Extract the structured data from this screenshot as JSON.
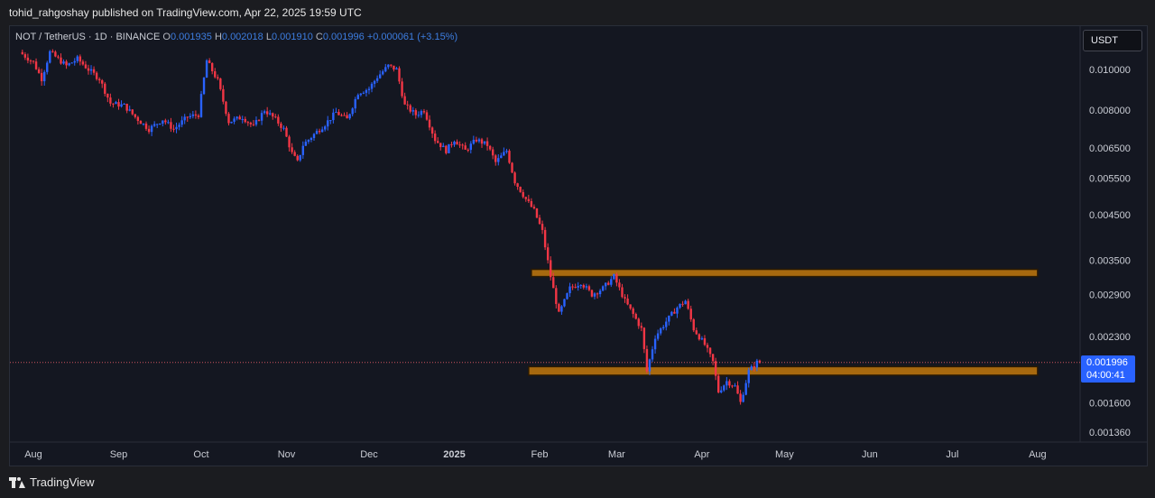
{
  "header": {
    "published": "tohid_rahgoshay published on TradingView.com, Apr 22, 2025 19:59 UTC"
  },
  "legend": {
    "symbol": "NOT / TetherUS · 1D · BINANCE",
    "o_label": "O",
    "o_value": "0.001935",
    "h_label": "H",
    "h_value": "0.002018",
    "l_label": "L",
    "l_value": "0.001910",
    "c_label": "C",
    "c_value": "0.001996",
    "change": "+0.000061 (+3.15%)"
  },
  "currency_button": {
    "label": "USDT"
  },
  "price_tag": {
    "price": "0.001996",
    "countdown": "04:00:41"
  },
  "footer": {
    "brand": "TradingView"
  },
  "colors": {
    "up": "#2962ff",
    "down": "#f23645",
    "zone": "#a7690f",
    "background": "#141721"
  },
  "chart_data": {
    "type": "candlestick",
    "scale": "log",
    "y_tick_labels": [
      "0.010000",
      "0.008000",
      "0.006500",
      "0.005500",
      "0.004500",
      "0.003500",
      "0.002900",
      "0.002300",
      "0.001600",
      "0.001360"
    ],
    "y_ticks": [
      0.01,
      0.008,
      0.0065,
      0.0055,
      0.0045,
      0.0035,
      0.0029,
      0.0023,
      0.0016,
      0.00136
    ],
    "x_tick_labels": [
      "Aug",
      "Sep",
      "Oct",
      "Nov",
      "Dec",
      "2025",
      "Feb",
      "Mar",
      "Apr",
      "May",
      "Jun",
      "Jul",
      "Aug"
    ],
    "last_price": 0.001996,
    "zones": [
      {
        "from": "2025-01-29",
        "to": "2025-08-01",
        "low": 0.0032,
        "high": 0.00333
      },
      {
        "from": "2025-01-28",
        "to": "2025-08-01",
        "low": 0.00186,
        "high": 0.00195
      }
    ],
    "price_path": [
      [
        "2024-07-28",
        0.011
      ],
      [
        "2024-08-02",
        0.0104
      ],
      [
        "2024-08-05",
        0.0095
      ],
      [
        "2024-08-08",
        0.011
      ],
      [
        "2024-08-14",
        0.0102
      ],
      [
        "2024-08-18",
        0.0106
      ],
      [
        "2024-08-22",
        0.01
      ],
      [
        "2024-08-26",
        0.0095
      ],
      [
        "2024-08-30",
        0.0083
      ],
      [
        "2024-09-04",
        0.0082
      ],
      [
        "2024-09-08",
        0.0077
      ],
      [
        "2024-09-13",
        0.0072
      ],
      [
        "2024-09-18",
        0.0076
      ],
      [
        "2024-09-22",
        0.0072
      ],
      [
        "2024-09-27",
        0.0077
      ],
      [
        "2024-10-01",
        0.0078
      ],
      [
        "2024-10-04",
        0.0105
      ],
      [
        "2024-10-08",
        0.0094
      ],
      [
        "2024-10-12",
        0.0075
      ],
      [
        "2024-10-17",
        0.0077
      ],
      [
        "2024-10-21",
        0.0073
      ],
      [
        "2024-10-25",
        0.008
      ],
      [
        "2024-10-29",
        0.0076
      ],
      [
        "2024-11-01",
        0.0072
      ],
      [
        "2024-11-04",
        0.0063
      ],
      [
        "2024-11-06",
        0.006
      ],
      [
        "2024-11-08",
        0.0066
      ],
      [
        "2024-11-12",
        0.007
      ],
      [
        "2024-11-16",
        0.0074
      ],
      [
        "2024-11-20",
        0.0079
      ],
      [
        "2024-11-24",
        0.0076
      ],
      [
        "2024-11-28",
        0.0088
      ],
      [
        "2024-12-02",
        0.009
      ],
      [
        "2024-12-05",
        0.0096
      ],
      [
        "2024-12-09",
        0.0102
      ],
      [
        "2024-12-12",
        0.01
      ],
      [
        "2024-12-15",
        0.0082
      ],
      [
        "2024-12-19",
        0.0078
      ],
      [
        "2024-12-22",
        0.008
      ],
      [
        "2024-12-26",
        0.0068
      ],
      [
        "2024-12-30",
        0.0064
      ],
      [
        "2025-01-02",
        0.0068
      ],
      [
        "2025-01-06",
        0.0064
      ],
      [
        "2025-01-10",
        0.0068
      ],
      [
        "2025-01-14",
        0.0066
      ],
      [
        "2025-01-17",
        0.006
      ],
      [
        "2025-01-21",
        0.0064
      ],
      [
        "2025-01-24",
        0.0054
      ],
      [
        "2025-01-28",
        0.0049
      ],
      [
        "2025-01-31",
        0.0046
      ],
      [
        "2025-02-03",
        0.0041
      ],
      [
        "2025-02-06",
        0.0032
      ],
      [
        "2025-02-09",
        0.0026
      ],
      [
        "2025-02-13",
        0.003
      ],
      [
        "2025-02-17",
        0.0031
      ],
      [
        "2025-02-21",
        0.0029
      ],
      [
        "2025-02-25",
        0.003
      ],
      [
        "2025-03-01",
        0.0032
      ],
      [
        "2025-03-05",
        0.0028
      ],
      [
        "2025-03-08",
        0.0026
      ],
      [
        "2025-03-11",
        0.0024
      ],
      [
        "2025-03-13",
        0.0019
      ],
      [
        "2025-03-16",
        0.0023
      ],
      [
        "2025-03-20",
        0.0025
      ],
      [
        "2025-03-24",
        0.0027
      ],
      [
        "2025-03-27",
        0.0028
      ],
      [
        "2025-03-30",
        0.0024
      ],
      [
        "2025-04-03",
        0.0022
      ],
      [
        "2025-04-06",
        0.002
      ],
      [
        "2025-04-08",
        0.0017
      ],
      [
        "2025-04-11",
        0.0018
      ],
      [
        "2025-04-14",
        0.00175
      ],
      [
        "2025-04-16",
        0.0016
      ],
      [
        "2025-04-19",
        0.0019
      ],
      [
        "2025-04-22",
        0.001996
      ]
    ]
  }
}
